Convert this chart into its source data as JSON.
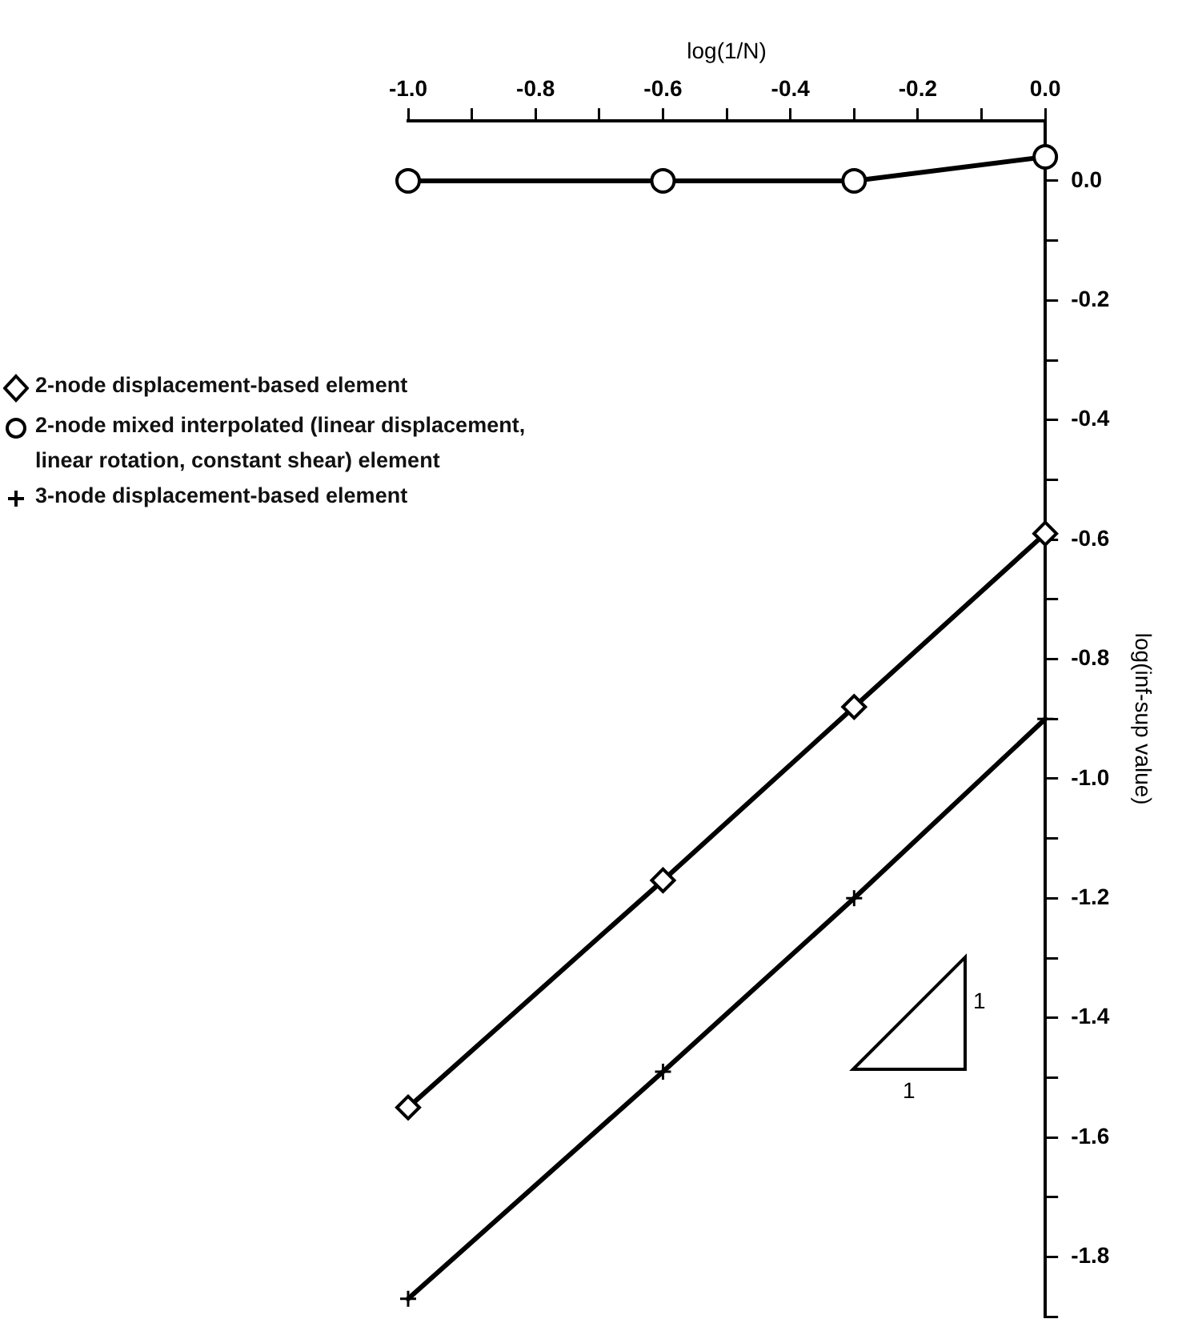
{
  "chart_data": {
    "type": "line",
    "xlabel": "log(1/N)",
    "ylabel": "log(inf-sup value)",
    "xlim": [
      -1.0,
      0.0
    ],
    "xticks": [
      {
        "value": -1.0,
        "label": "-1.0"
      },
      {
        "value": -0.9,
        "label": null
      },
      -0.8,
      {
        "value": -0.7,
        "label": null
      },
      -0.6,
      {
        "value": -0.5,
        "label": null
      },
      -0.4,
      {
        "value": -0.3,
        "label": null
      },
      -0.2,
      {
        "value": -0.1,
        "label": null
      },
      {
        "value": 0.0,
        "label": "0.0"
      }
    ],
    "ylim": [
      -1.9,
      0.1
    ],
    "yticks": [
      {
        "value": 0.0,
        "label": "0.0"
      },
      {
        "value": -0.1,
        "label": null
      },
      -0.2,
      {
        "value": -0.3,
        "label": null
      },
      -0.4,
      {
        "value": -0.5,
        "label": null
      },
      -0.6,
      {
        "value": -0.7,
        "label": null
      },
      -0.8,
      {
        "value": -0.9,
        "label": null
      },
      {
        "value": -1.0,
        "label": "-1.0"
      },
      {
        "value": -1.1,
        "label": null
      },
      -1.2,
      {
        "value": -1.3,
        "label": null
      },
      -1.4,
      {
        "value": -1.5,
        "label": null
      },
      -1.6,
      {
        "value": -1.7,
        "label": null
      },
      -1.8,
      {
        "value": -1.9,
        "label": null
      }
    ],
    "x": [
      -1.0,
      -0.6,
      -0.3,
      0.0
    ],
    "series": [
      {
        "name": "2-node displacement-based element",
        "color": "#000000",
        "marker": "diamond",
        "values": [
          -1.55,
          -1.17,
          -0.88,
          -0.59
        ]
      },
      {
        "name": "2-node mixed interpolated (linear displacement, linear rotation, constant shear) element",
        "color": "#000000",
        "marker": "circle",
        "values": [
          0.0,
          0.0,
          0.0,
          0.04
        ]
      },
      {
        "name": "3-node displacement-based element",
        "color": "#000000",
        "marker": "cross",
        "values": [
          -1.87,
          -1.49,
          -1.2,
          -0.9
        ]
      }
    ],
    "annotations": [
      "1",
      "1"
    ],
    "grid": false,
    "legend": "left",
    "line_style": "solid"
  }
}
